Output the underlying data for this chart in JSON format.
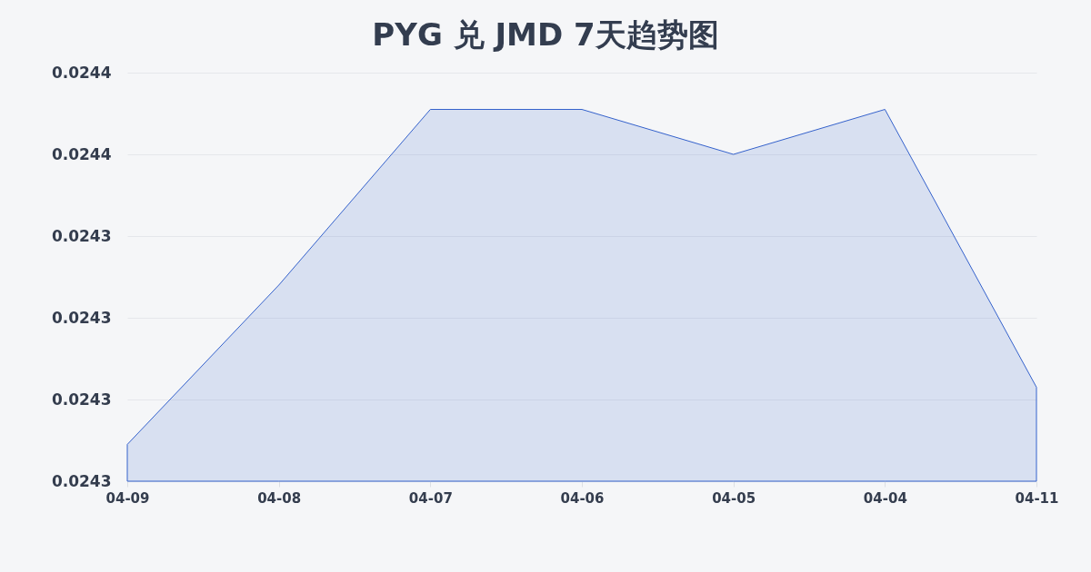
{
  "chart_data": {
    "type": "area",
    "title": "PYG 兑 JMD 7天趋势图",
    "categories": [
      "04-09",
      "04-08",
      "04-07",
      "04-06",
      "04-05",
      "04-04",
      "04-11"
    ],
    "values": [
      0.024289,
      0.024328,
      0.024371,
      0.024371,
      0.02436,
      0.024371,
      0.024303
    ],
    "color": "#3562cc",
    "ylim": [
      0.02428,
      0.02438
    ],
    "yticks": [
      {
        "value": 0.02428,
        "label": "0.0243"
      },
      {
        "value": 0.0243,
        "label": "0.0243"
      },
      {
        "value": 0.02432,
        "label": "0.0243"
      },
      {
        "value": 0.02434,
        "label": "0.0243"
      },
      {
        "value": 0.02436,
        "label": "0.0244"
      },
      {
        "value": 0.02438,
        "label": "0.0244"
      }
    ],
    "grid": "y"
  }
}
